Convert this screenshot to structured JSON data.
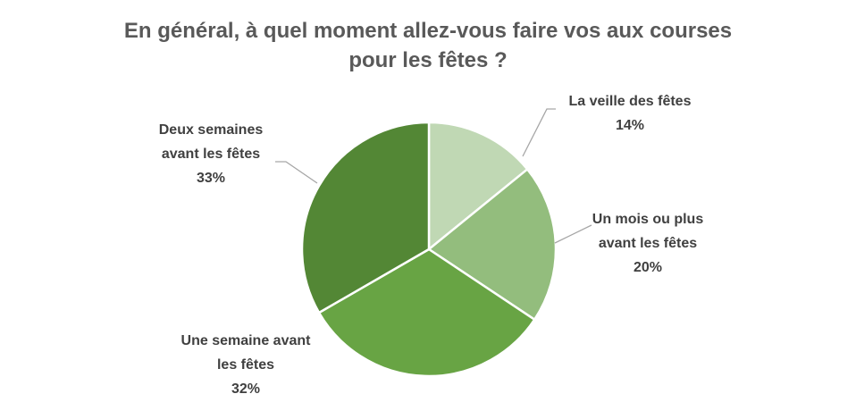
{
  "chart_data": {
    "type": "pie",
    "title_lines": [
      "En général, à quel moment allez-vous faire vos aux courses",
      "pour les fêtes ?"
    ],
    "slices": [
      {
        "label_lines": [
          "La veille des fêtes"
        ],
        "value": 14,
        "value_text": "14%",
        "color": "#c0d8b4"
      },
      {
        "label_lines": [
          "Un mois ou plus",
          "avant les fêtes"
        ],
        "value": 20,
        "value_text": "20%",
        "color": "#93bd7d"
      },
      {
        "label_lines": [
          "Une semaine avant",
          "les fêtes"
        ],
        "value": 32,
        "value_text": "32%",
        "color": "#68a444"
      },
      {
        "label_lines": [
          "Deux semaines",
          "avant les fêtes"
        ],
        "value": 33,
        "value_text": "33%",
        "color": "#538735"
      }
    ],
    "start_angle_deg": 0,
    "direction": "clockwise",
    "legend": "none",
    "label_color": "#404040",
    "leader_color": "#a6a6a6"
  }
}
